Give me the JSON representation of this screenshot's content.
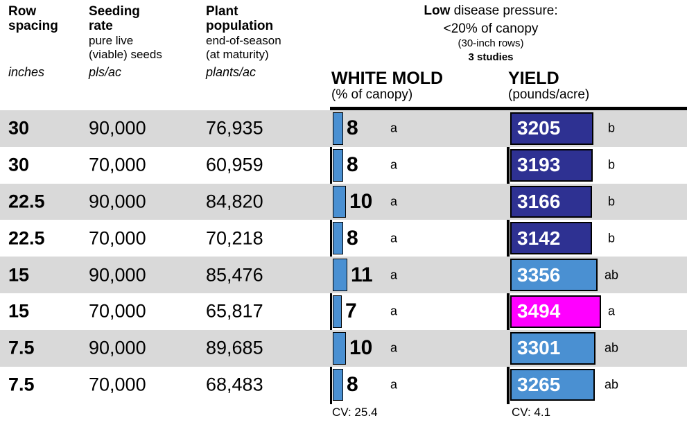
{
  "columns": [
    {
      "title": "Row\nspacing",
      "subtitle": "",
      "unit": "inches"
    },
    {
      "title": "Seeding\nrate",
      "subtitle": "pure live\n(viable) seeds",
      "unit": "pls/ac"
    },
    {
      "title": "Plant\npopulation",
      "subtitle": "end-of-season\n(at maturity)",
      "unit": "plants/ac"
    }
  ],
  "condition": {
    "emphasis": "Low",
    "title_rest": " disease pressure:",
    "line2": "<20% of canopy",
    "line3": "(30-inch rows)",
    "line4": "3 studies"
  },
  "white_mold": {
    "title": "WHITE MOLD",
    "subtitle": "(% of canopy)",
    "cv_label": "CV: 25.4"
  },
  "yield": {
    "title": "YIELD",
    "subtitle": "(pounds/acre)",
    "cv_label": "CV: 4.1"
  },
  "chart_data": {
    "type": "bar",
    "title": "Low disease pressure: <20% of canopy (30-inch rows), 3 studies",
    "series": [
      {
        "name": "WHITE MOLD (% of canopy)",
        "cv": 25.4,
        "values": [
          8,
          8,
          10,
          8,
          11,
          7,
          10,
          8
        ],
        "groups": [
          "a",
          "a",
          "a",
          "a",
          "a",
          "a",
          "a",
          "a"
        ]
      },
      {
        "name": "YIELD (pounds/acre)",
        "cv": 4.1,
        "values": [
          3205,
          3193,
          3166,
          3142,
          3356,
          3494,
          3301,
          3265
        ],
        "groups": [
          "b",
          "b",
          "b",
          "b",
          "ab",
          "a",
          "ab",
          "ab"
        ]
      }
    ],
    "rows": [
      {
        "row_spacing": "30",
        "seeding_rate": "90,000",
        "plant_population": "76,935",
        "white_mold": 8,
        "white_mold_group": "a",
        "yield": 3205,
        "yield_group": "b",
        "yield_color": "navy"
      },
      {
        "row_spacing": "30",
        "seeding_rate": "70,000",
        "plant_population": "60,959",
        "white_mold": 8,
        "white_mold_group": "a",
        "yield": 3193,
        "yield_group": "b",
        "yield_color": "navy"
      },
      {
        "row_spacing": "22.5",
        "seeding_rate": "90,000",
        "plant_population": "84,820",
        "white_mold": 10,
        "white_mold_group": "a",
        "yield": 3166,
        "yield_group": "b",
        "yield_color": "navy"
      },
      {
        "row_spacing": "22.5",
        "seeding_rate": "70,000",
        "plant_population": "70,218",
        "white_mold": 8,
        "white_mold_group": "a",
        "yield": 3142,
        "yield_group": "b",
        "yield_color": "navy"
      },
      {
        "row_spacing": "15",
        "seeding_rate": "90,000",
        "plant_population": "85,476",
        "white_mold": 11,
        "white_mold_group": "a",
        "yield": 3356,
        "yield_group": "ab",
        "yield_color": "blue"
      },
      {
        "row_spacing": "15",
        "seeding_rate": "70,000",
        "plant_population": "65,817",
        "white_mold": 7,
        "white_mold_group": "a",
        "yield": 3494,
        "yield_group": "a",
        "yield_color": "magenta"
      },
      {
        "row_spacing": "7.5",
        "seeding_rate": "90,000",
        "plant_population": "89,685",
        "white_mold": 10,
        "white_mold_group": "a",
        "yield": 3301,
        "yield_group": "ab",
        "yield_color": "blue"
      },
      {
        "row_spacing": "7.5",
        "seeding_rate": "70,000",
        "plant_population": "68,483",
        "white_mold": 8,
        "white_mold_group": "a",
        "yield": 3265,
        "yield_group": "ab",
        "yield_color": "blue"
      }
    ],
    "colors": {
      "navy": "#2e3192",
      "blue": "#4a90d2",
      "magenta": "#ff00ff",
      "stripe_gray": "#d9d9d9"
    }
  }
}
